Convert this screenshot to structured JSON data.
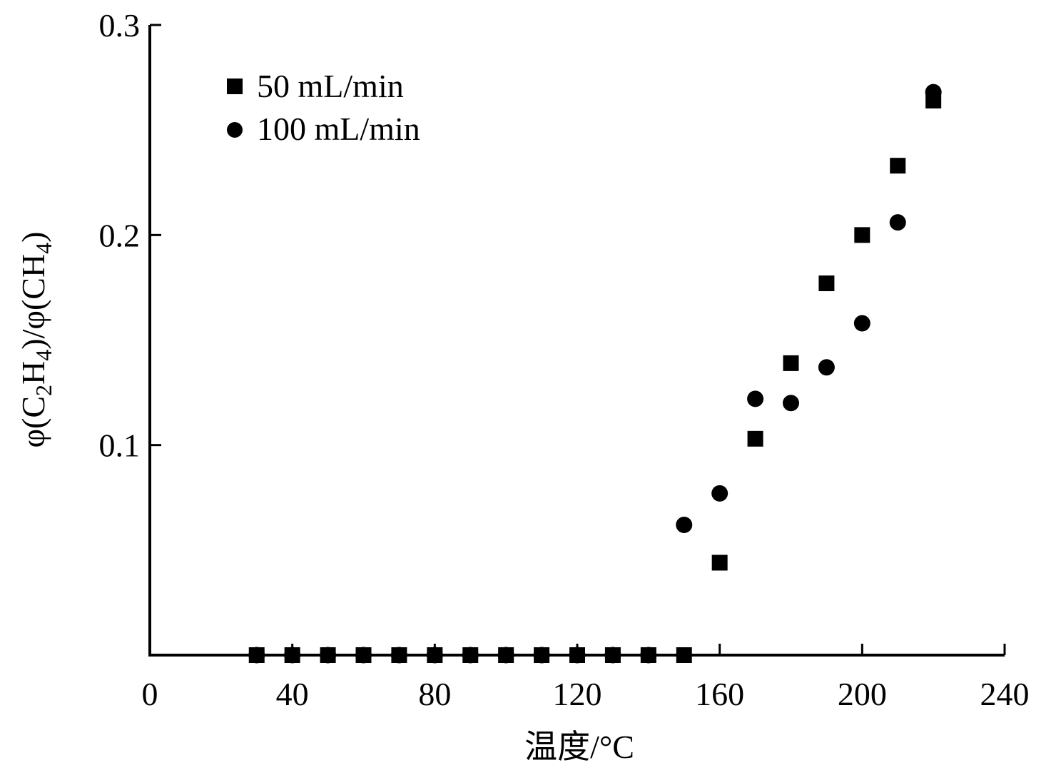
{
  "chart_data": {
    "type": "scatter",
    "title": "",
    "xlabel": "温度/°C",
    "ylabel": {
      "prefix": "φ(C",
      "sub1": "2",
      "mid": "H",
      "sub2": "4",
      "mid2": ")/φ(CH",
      "sub3": "4",
      "suffix": ")"
    },
    "xlim": [
      0,
      240
    ],
    "ylim": [
      0,
      0.3
    ],
    "x_ticks": [
      "0",
      "40",
      "80",
      "120",
      "160",
      "200",
      "240"
    ],
    "y_ticks": [
      "0.1",
      "0.2",
      "0.3"
    ],
    "grid": false,
    "legend_position": "top-left",
    "series": [
      {
        "name": "50 mL/min",
        "marker": "square",
        "color": "#000000",
        "x": [
          30,
          40,
          50,
          60,
          70,
          80,
          90,
          100,
          110,
          120,
          130,
          140,
          150,
          160,
          170,
          180,
          190,
          200,
          210,
          220
        ],
        "y": [
          0,
          0,
          0,
          0,
          0,
          0,
          0,
          0,
          0,
          0,
          0,
          0,
          0,
          0.044,
          0.103,
          0.139,
          0.177,
          0.2,
          0.233,
          0.264
        ]
      },
      {
        "name": "100 mL/min",
        "marker": "circle",
        "color": "#000000",
        "x": [
          30,
          40,
          50,
          60,
          70,
          80,
          90,
          100,
          110,
          120,
          130,
          140,
          150,
          160,
          170,
          180,
          190,
          200,
          210,
          220
        ],
        "y": [
          0,
          0,
          0,
          0,
          0,
          0,
          0,
          0,
          0,
          0,
          0,
          0,
          0.062,
          0.077,
          0.122,
          0.12,
          0.137,
          0.158,
          0.206,
          0.268
        ]
      }
    ]
  }
}
